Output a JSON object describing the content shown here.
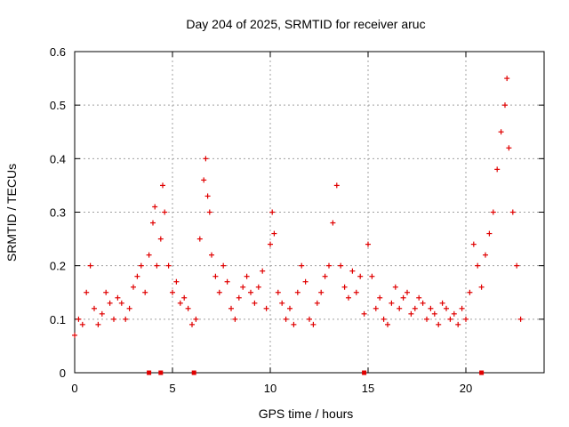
{
  "chart_data": {
    "type": "scatter",
    "title": "Day 204 of 2025, SRMTID for receiver aruc",
    "xlabel": "GPS time / hours",
    "ylabel": "SRMTID / TECUs",
    "xlim": [
      0,
      24
    ],
    "ylim": [
      0,
      0.6
    ],
    "xticks": [
      0,
      5,
      10,
      15,
      20
    ],
    "yticks": [
      0,
      0.1,
      0.2,
      0.3,
      0.4,
      0.5,
      0.6
    ],
    "grid": true,
    "marker": "plus",
    "color": "#e00000",
    "series": [
      {
        "name": "SRMTID",
        "x": [
          0.0,
          0.2,
          0.4,
          0.6,
          0.8,
          1.0,
          1.2,
          1.4,
          1.6,
          1.8,
          2.0,
          2.2,
          2.4,
          2.6,
          2.8,
          3.0,
          3.2,
          3.4,
          3.6,
          3.8,
          4.0,
          4.1,
          4.2,
          4.4,
          4.5,
          4.6,
          4.8,
          5.0,
          5.2,
          5.4,
          5.6,
          5.8,
          6.0,
          6.2,
          6.4,
          6.6,
          6.7,
          6.8,
          6.9,
          7.0,
          7.2,
          7.4,
          7.6,
          7.8,
          8.0,
          8.2,
          8.4,
          8.6,
          8.8,
          9.0,
          9.2,
          9.4,
          9.6,
          9.8,
          10.0,
          10.1,
          10.2,
          10.4,
          10.6,
          10.8,
          11.0,
          11.2,
          11.4,
          11.6,
          11.8,
          12.0,
          12.2,
          12.4,
          12.6,
          12.8,
          13.0,
          13.2,
          13.4,
          13.6,
          13.8,
          14.0,
          14.2,
          14.4,
          14.6,
          14.8,
          15.0,
          15.2,
          15.4,
          15.6,
          15.8,
          16.0,
          16.2,
          16.4,
          16.6,
          16.8,
          17.0,
          17.2,
          17.4,
          17.6,
          17.8,
          18.0,
          18.2,
          18.4,
          18.6,
          18.8,
          19.0,
          19.2,
          19.4,
          19.6,
          19.8,
          20.0,
          20.2,
          20.4,
          20.6,
          20.8,
          21.0,
          21.2,
          21.4,
          21.6,
          21.8,
          22.0,
          22.1,
          22.2,
          22.4,
          22.6,
          22.8
        ],
        "y": [
          0.07,
          0.1,
          0.09,
          0.15,
          0.2,
          0.12,
          0.09,
          0.11,
          0.15,
          0.13,
          0.1,
          0.14,
          0.13,
          0.1,
          0.12,
          0.16,
          0.18,
          0.2,
          0.15,
          0.22,
          0.28,
          0.31,
          0.2,
          0.25,
          0.35,
          0.3,
          0.2,
          0.15,
          0.17,
          0.13,
          0.14,
          0.12,
          0.09,
          0.1,
          0.25,
          0.36,
          0.4,
          0.33,
          0.3,
          0.22,
          0.18,
          0.15,
          0.2,
          0.17,
          0.12,
          0.1,
          0.14,
          0.16,
          0.18,
          0.15,
          0.13,
          0.16,
          0.19,
          0.12,
          0.24,
          0.3,
          0.26,
          0.15,
          0.13,
          0.1,
          0.12,
          0.09,
          0.15,
          0.2,
          0.17,
          0.1,
          0.09,
          0.13,
          0.15,
          0.18,
          0.2,
          0.28,
          0.35,
          0.2,
          0.16,
          0.14,
          0.19,
          0.15,
          0.18,
          0.11,
          0.24,
          0.18,
          0.12,
          0.14,
          0.1,
          0.09,
          0.13,
          0.16,
          0.12,
          0.14,
          0.15,
          0.11,
          0.12,
          0.14,
          0.13,
          0.1,
          0.12,
          0.11,
          0.09,
          0.13,
          0.12,
          0.1,
          0.11,
          0.09,
          0.12,
          0.1,
          0.15,
          0.24,
          0.2,
          0.16,
          0.22,
          0.26,
          0.3,
          0.38,
          0.45,
          0.5,
          0.55,
          0.42,
          0.3,
          0.2,
          0.1
        ]
      }
    ],
    "axis_markers_x": [
      3.8,
      4.4,
      6.1,
      14.8,
      20.8
    ]
  }
}
